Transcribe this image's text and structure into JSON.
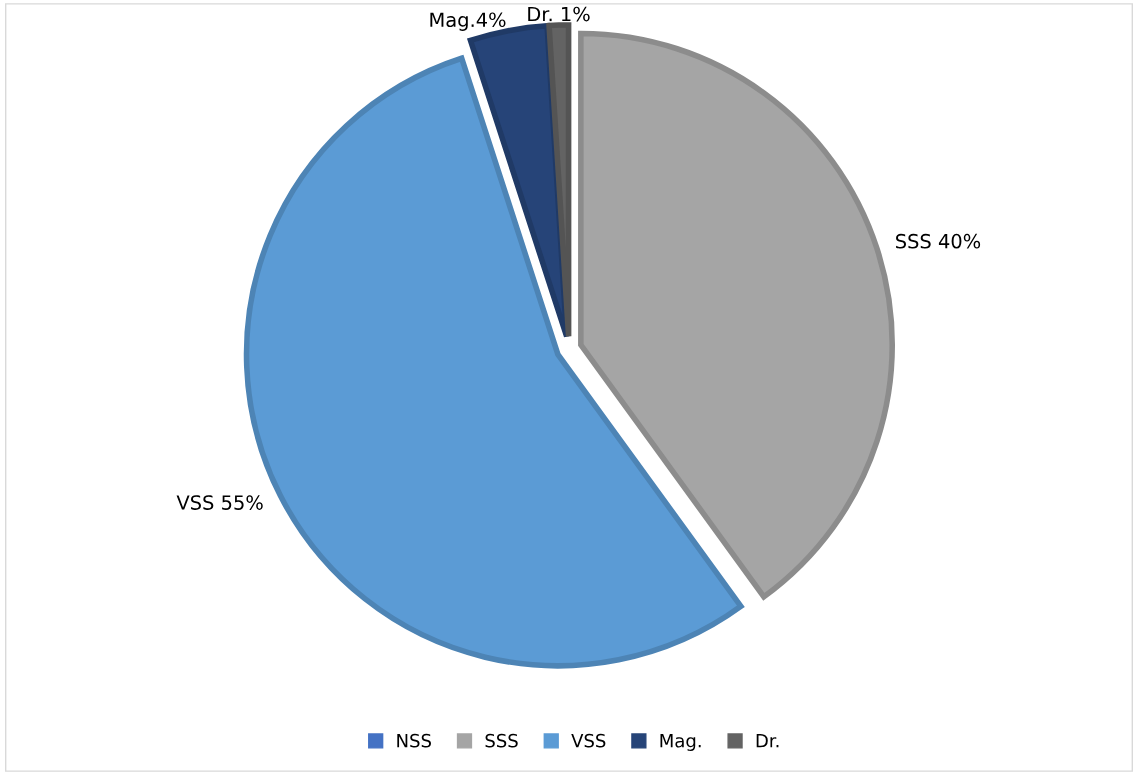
{
  "chart_data": {
    "type": "pie",
    "categories": [
      "NSS",
      "SSS",
      "VSS",
      "Mag.",
      "Dr."
    ],
    "values": [
      0,
      40,
      55,
      4,
      1
    ],
    "colors": [
      "#4472c4",
      "#a5a5a5",
      "#5b9bd5",
      "#264478",
      "#636363"
    ],
    "value_labels": [
      null,
      "SSS 40%",
      "VSS 55%",
      "Mag.4%",
      "Dr. 1%"
    ],
    "legend": "bottom"
  }
}
